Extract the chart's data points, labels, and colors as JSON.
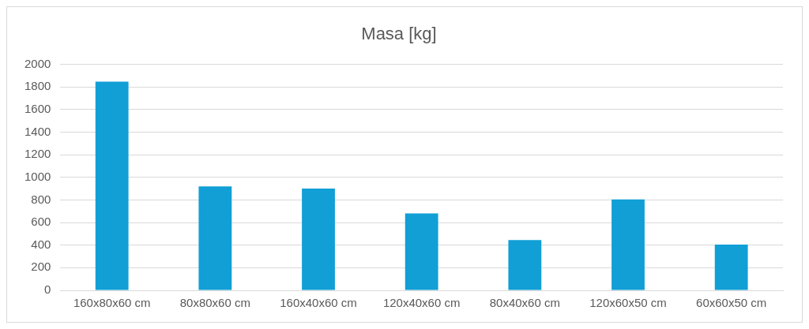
{
  "chart_data": {
    "type": "bar",
    "title": "Masa [kg]",
    "categories": [
      "160x80x60 cm",
      "80x80x60 cm",
      "160x40x60 cm",
      "120x40x60 cm",
      "80x40x60 cm",
      "120x60x50 cm",
      "60x60x50 cm"
    ],
    "values": [
      1845,
      920,
      900,
      680,
      445,
      805,
      405
    ],
    "color": "#119fd6",
    "ylim": [
      0,
      2000
    ],
    "yticks": [
      0,
      200,
      400,
      600,
      800,
      1000,
      1200,
      1400,
      1600,
      1800,
      2000
    ],
    "grid": "y",
    "legend": false
  }
}
